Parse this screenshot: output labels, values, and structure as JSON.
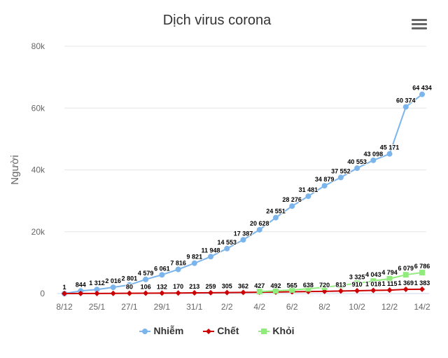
{
  "menu": {
    "icon": "hamburger-menu-icon"
  },
  "chart_data": {
    "type": "line",
    "title": "Dịch virus corona",
    "ylabel": "Người",
    "xlabel": "",
    "ylim": [
      0,
      80000
    ],
    "y_ticks": [
      "0",
      "20k",
      "40k",
      "60k",
      "80k"
    ],
    "y_tick_values": [
      0,
      20000,
      40000,
      60000,
      80000
    ],
    "x_tick_labels": [
      "8/12",
      "25/1",
      "27/1",
      "29/1",
      "31/1",
      "2/2",
      "4/2",
      "6/2",
      "8/2",
      "10/2",
      "12/2",
      "14/2"
    ],
    "grid": true,
    "legend_position": "bottom",
    "series": [
      {
        "name": "Nhiễm",
        "color": "#7cb5ec",
        "marker": "circle",
        "points": [
          {
            "x": 0,
            "y": 1,
            "label": "1"
          },
          {
            "x": 1,
            "y": 844,
            "label": "844"
          },
          {
            "x": 2,
            "y": 1312,
            "label": "1 312"
          },
          {
            "x": 3,
            "y": 2016,
            "label": "2 016"
          },
          {
            "x": 4,
            "y": 2801,
            "label": "2 801"
          },
          {
            "x": 5,
            "y": 4579,
            "label": "4 579"
          },
          {
            "x": 6,
            "y": 6061,
            "label": "6 061"
          },
          {
            "x": 7,
            "y": 7816,
            "label": "7 816"
          },
          {
            "x": 8,
            "y": 9821,
            "label": "9 821"
          },
          {
            "x": 9,
            "y": 11948,
            "label": "11 948"
          },
          {
            "x": 10,
            "y": 14553,
            "label": "14 553"
          },
          {
            "x": 11,
            "y": 17387,
            "label": "17 387"
          },
          {
            "x": 12,
            "y": 20628,
            "label": "20 628"
          },
          {
            "x": 13,
            "y": 24551,
            "label": "24 551"
          },
          {
            "x": 14,
            "y": 28276,
            "label": "28 276"
          },
          {
            "x": 15,
            "y": 31481,
            "label": "31 481"
          },
          {
            "x": 16,
            "y": 34879,
            "label": "34 879"
          },
          {
            "x": 17,
            "y": 37552,
            "label": "37 552"
          },
          {
            "x": 18,
            "y": 40553,
            "label": "40 553"
          },
          {
            "x": 19,
            "y": 43098,
            "label": "43 098"
          },
          {
            "x": 20,
            "y": 45171,
            "label": "45 171"
          },
          {
            "x": 21,
            "y": 60374,
            "label": "60 374"
          },
          {
            "x": 22,
            "y": 64434,
            "label": "64 434"
          }
        ]
      },
      {
        "name": "Chết",
        "color": "#cc0000",
        "marker": "diamond",
        "points": [
          {
            "x": 0,
            "y": 1,
            "label": ""
          },
          {
            "x": 1,
            "y": 25,
            "label": ""
          },
          {
            "x": 2,
            "y": 41,
            "label": ""
          },
          {
            "x": 3,
            "y": 56,
            "label": ""
          },
          {
            "x": 4,
            "y": 80,
            "label": "80"
          },
          {
            "x": 5,
            "y": 106,
            "label": "106"
          },
          {
            "x": 6,
            "y": 132,
            "label": "132"
          },
          {
            "x": 7,
            "y": 170,
            "label": "170"
          },
          {
            "x": 8,
            "y": 213,
            "label": "213"
          },
          {
            "x": 9,
            "y": 259,
            "label": "259"
          },
          {
            "x": 10,
            "y": 305,
            "label": "305"
          },
          {
            "x": 11,
            "y": 362,
            "label": "362"
          },
          {
            "x": 12,
            "y": 427,
            "label": "427"
          },
          {
            "x": 13,
            "y": 492,
            "label": "492"
          },
          {
            "x": 14,
            "y": 565,
            "label": "565"
          },
          {
            "x": 15,
            "y": 638,
            "label": "638"
          },
          {
            "x": 16,
            "y": 720,
            "label": "720"
          },
          {
            "x": 17,
            "y": 813,
            "label": "813"
          },
          {
            "x": 18,
            "y": 910,
            "label": "910"
          },
          {
            "x": 19,
            "y": 1018,
            "label": "1 018"
          },
          {
            "x": 20,
            "y": 1115,
            "label": "1 115"
          },
          {
            "x": 21,
            "y": 1369,
            "label": "1 369"
          },
          {
            "x": 22,
            "y": 1383,
            "label": "1 383"
          }
        ]
      },
      {
        "name": "Khỏi",
        "color": "#90ed7d",
        "marker": "square",
        "points": [
          {
            "x": 12,
            "y": 632,
            "label": ""
          },
          {
            "x": 13,
            "y": 892,
            "label": ""
          },
          {
            "x": 14,
            "y": 1153,
            "label": ""
          },
          {
            "x": 15,
            "y": 1540,
            "label": ""
          },
          {
            "x": 16,
            "y": 2050,
            "label": ""
          },
          {
            "x": 17,
            "y": 2649,
            "label": ""
          },
          {
            "x": 18,
            "y": 3325,
            "label": "3 325"
          },
          {
            "x": 19,
            "y": 4043,
            "label": "4 043"
          },
          {
            "x": 20,
            "y": 4794,
            "label": "4 794"
          },
          {
            "x": 21,
            "y": 6079,
            "label": "6 079"
          },
          {
            "x": 22,
            "y": 6786,
            "label": "6 786"
          }
        ]
      }
    ]
  }
}
